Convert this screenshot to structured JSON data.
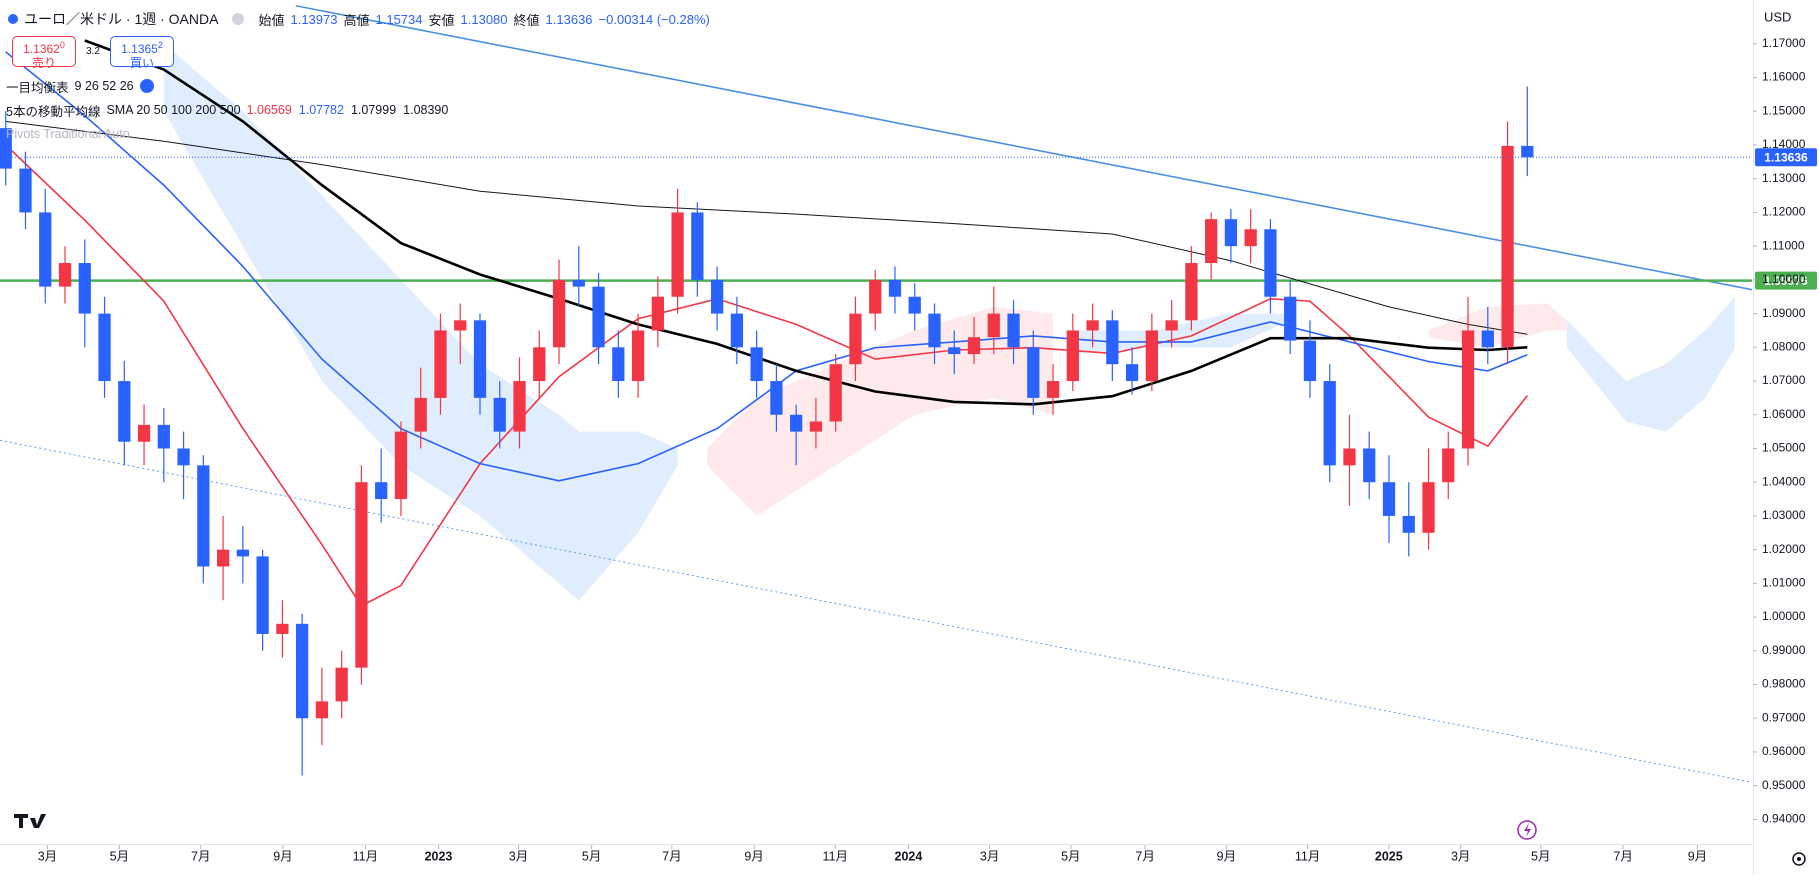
{
  "header": {
    "symbol": "ユーロ／米ドル · 1週 · OANDA",
    "ohlc": [
      {
        "label": "始値",
        "value": "1.13973"
      },
      {
        "label": "高値",
        "value": "1.15734"
      },
      {
        "label": "安値",
        "value": "1.13080"
      },
      {
        "label": "終値",
        "value": "1.13636"
      }
    ],
    "change": "−0.00314 (−0.28%)"
  },
  "trade": {
    "sell": {
      "price": "1.1362",
      "digit": "0",
      "label": "売り"
    },
    "spread": "3.2",
    "buy": {
      "price": "1.1365",
      "digit": "2",
      "label": "買い"
    }
  },
  "indicators": [
    {
      "name": "一目均衡表",
      "params": "9 26 52 26"
    },
    {
      "name": "5本の移動平均線",
      "params": "SMA 20 50 100 200 500",
      "values": [
        {
          "text": "1.06569",
          "color": "#f23645"
        },
        {
          "text": "1.07782",
          "color": "#2962ff"
        },
        {
          "text": "1.07999",
          "color": "#131722"
        },
        {
          "text": "1.08390",
          "color": "#131722"
        }
      ]
    },
    {
      "name": "Pivots Traditional Auto"
    }
  ],
  "currency": "USD",
  "chart_data": {
    "type": "candlestick",
    "up_color": "#f23645",
    "down_color": "#2962ff",
    "categories": [
      null,
      null,
      null,
      null,
      null,
      null,
      null,
      null,
      null,
      null,
      null,
      null,
      null,
      null,
      null,
      null,
      null,
      null,
      null,
      null,
      null,
      null,
      null,
      null,
      null,
      null,
      null,
      null,
      null,
      null,
      null,
      null,
      null,
      null,
      null,
      null,
      null,
      null,
      null,
      null,
      null,
      null,
      null,
      null,
      null,
      null,
      null,
      null,
      null,
      null,
      null,
      null,
      null,
      null,
      null,
      null,
      null,
      null,
      null,
      null,
      null,
      null,
      null,
      null,
      null,
      null,
      null,
      null,
      null,
      null,
      null,
      null,
      null,
      null,
      null,
      null,
      null,
      null
    ],
    "open": [
      1.145,
      1.133,
      1.12,
      1.098,
      1.105,
      1.09,
      1.07,
      1.052,
      1.057,
      1.05,
      1.045,
      1.015,
      1.02,
      1.018,
      0.995,
      0.998,
      0.97,
      0.975,
      0.985,
      1.04,
      1.035,
      1.055,
      1.065,
      1.085,
      1.088,
      1.065,
      1.055,
      1.07,
      1.08,
      1.1,
      1.098,
      1.08,
      1.07,
      1.085,
      1.095,
      1.12,
      1.1,
      1.09,
      1.08,
      1.07,
      1.06,
      1.055,
      1.058,
      1.075,
      1.09,
      1.1,
      1.095,
      1.09,
      1.08,
      1.078,
      1.083,
      1.09,
      1.08,
      1.065,
      1.07,
      1.085,
      1.088,
      1.075,
      1.07,
      1.085,
      1.088,
      1.105,
      1.118,
      1.11,
      1.115,
      1.095,
      1.082,
      1.07,
      1.045,
      1.05,
      1.04,
      1.03,
      1.025,
      1.04,
      1.05,
      1.085,
      1.08,
      1.13973
    ],
    "high": [
      1.15,
      1.138,
      1.127,
      1.11,
      1.112,
      1.095,
      1.076,
      1.063,
      1.062,
      1.055,
      1.048,
      1.03,
      1.027,
      1.02,
      1.005,
      1.001,
      0.985,
      0.99,
      1.045,
      1.05,
      1.058,
      1.074,
      1.09,
      1.093,
      1.09,
      1.07,
      1.077,
      1.085,
      1.106,
      1.11,
      1.102,
      1.085,
      1.09,
      1.101,
      1.127,
      1.123,
      1.104,
      1.095,
      1.085,
      1.075,
      1.063,
      1.065,
      1.078,
      1.095,
      1.103,
      1.104,
      1.099,
      1.093,
      1.085,
      1.089,
      1.098,
      1.094,
      1.085,
      1.075,
      1.09,
      1.093,
      1.091,
      1.08,
      1.09,
      1.094,
      1.11,
      1.12,
      1.121,
      1.121,
      1.118,
      1.1,
      1.088,
      1.075,
      1.06,
      1.055,
      1.048,
      1.04,
      1.05,
      1.055,
      1.095,
      1.092,
      1.147,
      1.15734
    ],
    "low": [
      1.128,
      1.115,
      1.093,
      1.093,
      1.08,
      1.065,
      1.045,
      1.045,
      1.04,
      1.035,
      1.01,
      1.005,
      1.01,
      0.99,
      0.988,
      0.953,
      0.962,
      0.97,
      0.98,
      1.028,
      1.03,
      1.05,
      1.06,
      1.075,
      1.06,
      1.05,
      1.05,
      1.065,
      1.075,
      1.092,
      1.075,
      1.065,
      1.065,
      1.08,
      1.09,
      1.095,
      1.085,
      1.075,
      1.065,
      1.055,
      1.045,
      1.05,
      1.055,
      1.07,
      1.085,
      1.09,
      1.085,
      1.075,
      1.072,
      1.075,
      1.078,
      1.075,
      1.06,
      1.06,
      1.067,
      1.08,
      1.07,
      1.066,
      1.067,
      1.08,
      1.085,
      1.1,
      1.105,
      1.105,
      1.09,
      1.078,
      1.065,
      1.04,
      1.033,
      1.035,
      1.022,
      1.018,
      1.02,
      1.035,
      1.045,
      1.075,
      1.075,
      1.1308
    ],
    "close": [
      1.133,
      1.12,
      1.098,
      1.105,
      1.09,
      1.07,
      1.052,
      1.057,
      1.05,
      1.045,
      1.015,
      1.02,
      1.018,
      0.995,
      0.998,
      0.97,
      0.975,
      0.985,
      1.04,
      1.035,
      1.055,
      1.065,
      1.085,
      1.088,
      1.065,
      1.055,
      1.07,
      1.08,
      1.1,
      1.098,
      1.08,
      1.07,
      1.085,
      1.095,
      1.12,
      1.1,
      1.09,
      1.08,
      1.07,
      1.06,
      1.055,
      1.058,
      1.075,
      1.09,
      1.1,
      1.095,
      1.09,
      1.08,
      1.078,
      1.083,
      1.09,
      1.08,
      1.065,
      1.07,
      1.085,
      1.088,
      1.075,
      1.07,
      1.085,
      1.088,
      1.105,
      1.118,
      1.11,
      1.115,
      1.095,
      1.082,
      1.07,
      1.045,
      1.05,
      1.04,
      1.03,
      1.025,
      1.04,
      1.05,
      1.085,
      1.08,
      1.13973,
      1.13636
    ],
    "series": [
      {
        "color": "#f23645",
        "width": 1.6,
        "x": [
          0,
          4,
          8,
          12,
          16,
          18,
          20,
          24,
          28,
          32,
          36,
          40,
          44,
          48,
          52,
          56,
          60,
          64,
          66,
          68,
          72,
          75,
          77
        ],
        "values": [
          1.14,
          1.1177,
          1.0937,
          1.0559,
          1.0215,
          1.0033,
          1.0094,
          1.0455,
          1.0713,
          1.0885,
          1.0944,
          1.0868,
          1.0765,
          1.0792,
          1.0799,
          1.0782,
          1.0834,
          1.0944,
          1.0937,
          1.0834,
          1.0593,
          1.0507,
          1.06569
        ]
      },
      {
        "color": "#2962ff",
        "width": 1.6,
        "x": [
          0,
          4,
          8,
          12,
          16,
          20,
          24,
          28,
          32,
          36,
          40,
          44,
          48,
          52,
          56,
          60,
          64,
          68,
          72,
          75,
          77
        ],
        "values": [
          1.1676,
          1.1487,
          1.1281,
          1.104,
          1.0765,
          1.0559,
          1.0455,
          1.0404,
          1.0455,
          1.0559,
          1.073,
          1.0799,
          1.0816,
          1.0834,
          1.0816,
          1.0816,
          1.0875,
          1.0816,
          1.0758,
          1.073,
          1.07782
        ]
      },
      {
        "color": "#000000",
        "width": 2.6,
        "x": [
          4,
          8,
          12,
          16,
          20,
          24,
          28,
          32,
          36,
          40,
          44,
          48,
          52,
          56,
          60,
          64,
          68,
          72,
          75,
          77
        ],
        "values": [
          1.171,
          1.1624,
          1.147,
          1.1281,
          1.1109,
          1.1016,
          1.0944,
          1.0868,
          1.081,
          1.073,
          1.0669,
          1.0638,
          1.0631,
          1.0655,
          1.073,
          1.0827,
          1.0827,
          1.0799,
          1.0792,
          1.07999
        ]
      },
      {
        "color": "#131722",
        "width": 1,
        "x": [
          0,
          8,
          16,
          24,
          32,
          40,
          48,
          56,
          62,
          66,
          70,
          74,
          77
        ],
        "values": [
          1.147,
          1.1411,
          1.1342,
          1.1263,
          1.1219,
          1.1195,
          1.1167,
          1.1136,
          1.1057,
          1.0988,
          1.092,
          1.0868,
          1.0839
        ]
      }
    ],
    "clouds": [
      {
        "color": "#d6e7fb",
        "x": [
          8,
          12,
          16,
          20,
          24,
          28,
          29,
          32,
          34
        ],
        "upper": [
          1.17,
          1.15,
          1.125,
          1.1,
          1.075,
          1.06,
          1.055,
          1.055,
          1.05
        ],
        "lower": [
          1.15,
          1.11,
          1.07,
          1.045,
          1.03,
          1.01,
          1.005,
          1.025,
          1.045
        ]
      },
      {
        "color": "#fde3e3",
        "x": [
          35.5,
          38,
          42,
          46,
          50,
          53
        ],
        "upper": [
          1.05,
          1.065,
          1.075,
          1.085,
          1.092,
          1.09
        ],
        "lower": [
          1.045,
          1.03,
          1.045,
          1.06,
          1.065,
          1.06
        ]
      },
      {
        "color": "#d6e7fb",
        "x": [
          54,
          58,
          62,
          65
        ],
        "upper": [
          1.085,
          1.085,
          1.09,
          1.09
        ],
        "lower": [
          1.078,
          1.08,
          1.08,
          1.088
        ]
      },
      {
        "color": "#fde3e3",
        "x": [
          72,
          75,
          78,
          79
        ],
        "upper": [
          1.085,
          1.092,
          1.093,
          1.088
        ],
        "lower": [
          1.083,
          1.08,
          1.085,
          1.085
        ]
      },
      {
        "color": "#d6e7fb",
        "x": [
          79,
          82,
          84,
          86,
          87.5
        ],
        "upper": [
          1.088,
          1.07,
          1.075,
          1.085,
          1.095
        ],
        "lower": [
          1.08,
          1.058,
          1.055,
          1.065,
          1.08
        ]
      }
    ],
    "trendlines": [
      {
        "color": "#4a8fe7",
        "dash": false,
        "x": [
          14.68,
          88.37
        ],
        "values": [
          1.1813,
          1.0971
        ]
      },
      {
        "color": "#5b9cf6",
        "dash": true,
        "x": [
          -0.29,
          88.37
        ],
        "values": [
          1.0524,
          0.951
        ]
      }
    ],
    "hlines": [
      {
        "value": 1.09976,
        "color": "#4caf50"
      }
    ],
    "xlim": [
      -0.29,
      88.37
    ],
    "ylim": [
      0.933,
      1.183
    ],
    "yticks": [
      {
        "value": 0.94,
        "label": "0.94000"
      },
      {
        "value": 0.95,
        "label": "0.95000"
      },
      {
        "value": 0.96,
        "label": "0.96000"
      },
      {
        "value": 0.97,
        "label": "0.97000"
      },
      {
        "value": 0.98,
        "label": "0.98000"
      },
      {
        "value": 0.99,
        "label": "0.99000"
      },
      {
        "value": 1.0,
        "label": "1.00000"
      },
      {
        "value": 1.01,
        "label": "1.01000"
      },
      {
        "value": 1.02,
        "label": "1.02000"
      },
      {
        "value": 1.03,
        "label": "1.03000"
      },
      {
        "value": 1.04,
        "label": "1.04000"
      },
      {
        "value": 1.05,
        "label": "1.05000"
      },
      {
        "value": 1.06,
        "label": "1.06000"
      },
      {
        "value": 1.07,
        "label": "1.07000"
      },
      {
        "value": 1.08,
        "label": "1.08000"
      },
      {
        "value": 1.09,
        "label": "1.09000"
      },
      {
        "value": 1.1,
        "label": "1.10000"
      },
      {
        "value": 1.11,
        "label": "1.11000"
      },
      {
        "value": 1.12,
        "label": "1.12000"
      },
      {
        "value": 1.13,
        "label": "1.13000"
      },
      {
        "value": 1.14,
        "label": "1.14000"
      },
      {
        "value": 1.15,
        "label": "1.15000"
      },
      {
        "value": 1.16,
        "label": "1.16000"
      },
      {
        "value": 1.17,
        "label": "1.17000"
      }
    ],
    "xticks": [
      {
        "value": 2.11,
        "label": "3月"
      },
      {
        "value": 5.75,
        "label": "5月"
      },
      {
        "value": 9.87,
        "label": "7月"
      },
      {
        "value": 14.03,
        "label": "9月"
      },
      {
        "value": 18.2,
        "label": "11月"
      },
      {
        "value": 21.9,
        "label": "2023"
      },
      {
        "value": 25.95,
        "label": "3月"
      },
      {
        "value": 29.65,
        "label": "5月"
      },
      {
        "value": 33.71,
        "label": "7月"
      },
      {
        "value": 37.87,
        "label": "9月"
      },
      {
        "value": 41.98,
        "label": "11月"
      },
      {
        "value": 45.68,
        "label": "2024"
      },
      {
        "value": 49.79,
        "label": "3月"
      },
      {
        "value": 53.9,
        "label": "5月"
      },
      {
        "value": 57.66,
        "label": "7月"
      },
      {
        "value": 61.77,
        "label": "9月"
      },
      {
        "value": 65.88,
        "label": "11月"
      },
      {
        "value": 69.99,
        "label": "2025"
      },
      {
        "value": 73.63,
        "label": "3月"
      },
      {
        "value": 77.68,
        "label": "5月"
      },
      {
        "value": 81.85,
        "label": "7月"
      },
      {
        "value": 85.61,
        "label": "9月"
      }
    ]
  }
}
